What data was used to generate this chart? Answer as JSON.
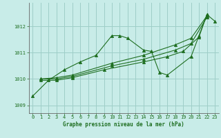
{
  "title": "Graphe pression niveau de la mer (hPa)",
  "bg_color": "#c8ece8",
  "grid_color": "#9ecec8",
  "line_color": "#1e6e20",
  "xlim": [
    -0.5,
    23.5
  ],
  "ylim": [
    1008.7,
    1012.9
  ],
  "yticks": [
    1009,
    1010,
    1011,
    1012
  ],
  "xticks": [
    0,
    1,
    2,
    3,
    4,
    5,
    6,
    7,
    8,
    9,
    10,
    11,
    12,
    13,
    14,
    15,
    16,
    17,
    18,
    19,
    20,
    21,
    22,
    23
  ],
  "series": [
    {
      "x": [
        0,
        2,
        4,
        6,
        8,
        10,
        11,
        12,
        14,
        15,
        16,
        17,
        20,
        21,
        22,
        23
      ],
      "y": [
        1009.35,
        1009.95,
        1010.35,
        1010.65,
        1010.9,
        1011.65,
        1011.65,
        1011.55,
        1011.1,
        1011.05,
        1010.25,
        1010.15,
        1010.85,
        1011.65,
        1012.45,
        1012.2
      ]
    },
    {
      "x": [
        1,
        3,
        5,
        10,
        14,
        18,
        20,
        22
      ],
      "y": [
        1010.0,
        1010.05,
        1010.15,
        1010.6,
        1010.9,
        1011.3,
        1011.55,
        1012.4
      ]
    },
    {
      "x": [
        1,
        3,
        5,
        10,
        14,
        18,
        20,
        22
      ],
      "y": [
        1010.0,
        1010.0,
        1010.1,
        1010.5,
        1010.75,
        1011.1,
        1011.35,
        1012.35
      ]
    },
    {
      "x": [
        1,
        3,
        5,
        9,
        14,
        17,
        19,
        21,
        22
      ],
      "y": [
        1009.95,
        1009.95,
        1010.05,
        1010.35,
        1010.65,
        1010.85,
        1011.05,
        1011.6,
        1012.45
      ]
    }
  ]
}
